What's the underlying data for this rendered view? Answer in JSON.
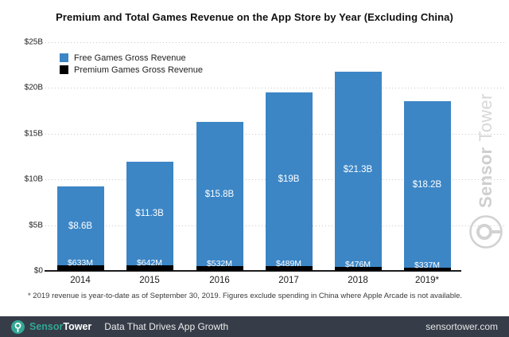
{
  "title": "Premium and Total Games Revenue on the App Store by Year (Excluding China)",
  "chart_data": {
    "type": "bar",
    "stacked": true,
    "categories": [
      "2014",
      "2015",
      "2016",
      "2017",
      "2018",
      "2019*"
    ],
    "series": [
      {
        "name": "Free Games Gross Revenue",
        "color": "#3c86c6",
        "values_billions": [
          8.6,
          11.3,
          15.8,
          19.0,
          21.3,
          18.2
        ],
        "bar_labels": [
          "$8.6B",
          "$11.3B",
          "$15.8B",
          "$19B",
          "$21.3B",
          "$18.2B"
        ]
      },
      {
        "name": "Premium Games Gross Revenue",
        "color": "#000000",
        "values_billions": [
          0.633,
          0.642,
          0.532,
          0.489,
          0.476,
          0.337
        ],
        "bar_labels": [
          "$633M",
          "$642M",
          "$532M",
          "$489M",
          "$476M",
          "$337M"
        ]
      }
    ],
    "ylim_billions": [
      0,
      25
    ],
    "yticks": [
      {
        "value": 0,
        "label": "$0"
      },
      {
        "value": 5,
        "label": "$5B"
      },
      {
        "value": 10,
        "label": "$10B"
      },
      {
        "value": 15,
        "label": "$15B"
      },
      {
        "value": 20,
        "label": "$20B"
      },
      {
        "value": 25,
        "label": "$25B"
      }
    ],
    "grid": "dotted horizontal",
    "legend_position": "top-left inside plot"
  },
  "footnote": "* 2019 revenue is year-to-date as of September 30, 2019. Figures exclude spending in China where Apple Arcade is not available.",
  "watermark": {
    "brand_part1": "Sensor",
    "brand_part2": "Tower",
    "color": "#d2d2d2"
  },
  "footer": {
    "brand_part1": "Sensor",
    "brand_part2": "Tower",
    "tagline": "Data That Drives App Growth",
    "url": "sensortower.com",
    "accent_color": "#33a795",
    "bg_color": "#363c48"
  }
}
